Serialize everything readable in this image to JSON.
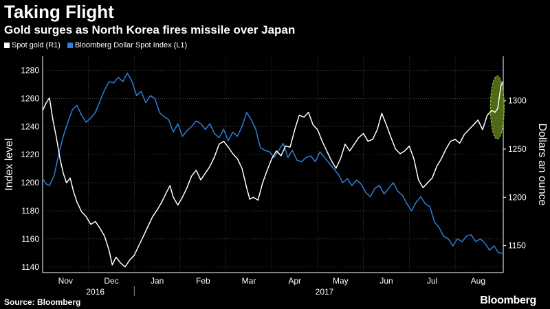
{
  "header": {
    "title": "Taking Flight",
    "subtitle": "Gold surges as North Korea fires missile over Japan"
  },
  "footer": {
    "source": "Source: Bloomberg",
    "brand": "Bloomberg"
  },
  "colors": {
    "gold": "#ffffff",
    "dollar": "#2e7fdc",
    "highlight": "#5a7a1a",
    "highlight_stroke": "#a4c832",
    "grid": "#555555"
  },
  "chart_data": {
    "type": "line",
    "title": "Taking Flight",
    "subtitle": "Gold surges as North Korea fires missile over Japan",
    "ylabel_left": "Index level",
    "ylabel_right": "Dollars an ounce",
    "ylim_left": [
      1136,
      1290
    ],
    "ylim_right": [
      1122,
      1346
    ],
    "yticks_left": [
      1140,
      1160,
      1180,
      1200,
      1220,
      1240,
      1260,
      1280
    ],
    "yticks_right": [
      1150,
      1200,
      1250,
      1300
    ],
    "xlim": [
      0,
      10.05
    ],
    "month_ticks": [
      {
        "label": "Nov",
        "x": 0.5
      },
      {
        "label": "Dec",
        "x": 1.5
      },
      {
        "label": "Jan",
        "x": 2.5
      },
      {
        "label": "Feb",
        "x": 3.5
      },
      {
        "label": "Mar",
        "x": 4.5
      },
      {
        "label": "Apr",
        "x": 5.5
      },
      {
        "label": "May",
        "x": 6.5
      },
      {
        "label": "Jun",
        "x": 7.5
      },
      {
        "label": "Jul",
        "x": 8.5
      },
      {
        "label": "Aug",
        "x": 9.5
      }
    ],
    "year_labels": [
      {
        "label": "2016",
        "x": 1.0
      },
      {
        "label": "2017",
        "x": 6.0
      }
    ],
    "grid": true,
    "legend_position": "top-left",
    "series": [
      {
        "name": "Spot gold (R1)",
        "axis": "right",
        "points": [
          [
            0.0,
            1290
          ],
          [
            0.08,
            1298
          ],
          [
            0.15,
            1303
          ],
          [
            0.22,
            1281
          ],
          [
            0.3,
            1262
          ],
          [
            0.38,
            1240
          ],
          [
            0.45,
            1225
          ],
          [
            0.52,
            1215
          ],
          [
            0.6,
            1220
          ],
          [
            0.68,
            1205
          ],
          [
            0.75,
            1195
          ],
          [
            0.85,
            1185
          ],
          [
            0.95,
            1180
          ],
          [
            1.05,
            1172
          ],
          [
            1.15,
            1175
          ],
          [
            1.25,
            1168
          ],
          [
            1.35,
            1160
          ],
          [
            1.45,
            1145
          ],
          [
            1.52,
            1130
          ],
          [
            1.6,
            1138
          ],
          [
            1.7,
            1132
          ],
          [
            1.8,
            1128
          ],
          [
            1.9,
            1135
          ],
          [
            2.0,
            1140
          ],
          [
            2.1,
            1150
          ],
          [
            2.2,
            1160
          ],
          [
            2.3,
            1170
          ],
          [
            2.4,
            1180
          ],
          [
            2.5,
            1187
          ],
          [
            2.6,
            1195
          ],
          [
            2.7,
            1205
          ],
          [
            2.78,
            1212
          ],
          [
            2.85,
            1200
          ],
          [
            2.95,
            1192
          ],
          [
            3.05,
            1200
          ],
          [
            3.15,
            1210
          ],
          [
            3.25,
            1222
          ],
          [
            3.35,
            1228
          ],
          [
            3.45,
            1218
          ],
          [
            3.55,
            1225
          ],
          [
            3.65,
            1232
          ],
          [
            3.75,
            1242
          ],
          [
            3.85,
            1255
          ],
          [
            3.95,
            1258
          ],
          [
            4.05,
            1252
          ],
          [
            4.15,
            1245
          ],
          [
            4.25,
            1240
          ],
          [
            4.35,
            1230
          ],
          [
            4.45,
            1210
          ],
          [
            4.52,
            1198
          ],
          [
            4.6,
            1200
          ],
          [
            4.7,
            1197
          ],
          [
            4.8,
            1215
          ],
          [
            4.9,
            1228
          ],
          [
            5.0,
            1240
          ],
          [
            5.1,
            1248
          ],
          [
            5.2,
            1243
          ],
          [
            5.3,
            1253
          ],
          [
            5.4,
            1252
          ],
          [
            5.5,
            1270
          ],
          [
            5.6,
            1285
          ],
          [
            5.7,
            1283
          ],
          [
            5.8,
            1288
          ],
          [
            5.9,
            1275
          ],
          [
            6.0,
            1270
          ],
          [
            6.1,
            1258
          ],
          [
            6.2,
            1248
          ],
          [
            6.3,
            1238
          ],
          [
            6.4,
            1230
          ],
          [
            6.5,
            1240
          ],
          [
            6.6,
            1255
          ],
          [
            6.7,
            1248
          ],
          [
            6.8,
            1255
          ],
          [
            6.9,
            1262
          ],
          [
            7.0,
            1266
          ],
          [
            7.1,
            1258
          ],
          [
            7.2,
            1260
          ],
          [
            7.3,
            1270
          ],
          [
            7.4,
            1287
          ],
          [
            7.5,
            1275
          ],
          [
            7.6,
            1262
          ],
          [
            7.7,
            1250
          ],
          [
            7.8,
            1245
          ],
          [
            7.9,
            1248
          ],
          [
            8.0,
            1253
          ],
          [
            8.1,
            1240
          ],
          [
            8.2,
            1218
          ],
          [
            8.3,
            1210
          ],
          [
            8.4,
            1215
          ],
          [
            8.5,
            1220
          ],
          [
            8.6,
            1232
          ],
          [
            8.7,
            1240
          ],
          [
            8.8,
            1250
          ],
          [
            8.9,
            1258
          ],
          [
            9.0,
            1260
          ],
          [
            9.1,
            1256
          ],
          [
            9.2,
            1265
          ],
          [
            9.3,
            1270
          ],
          [
            9.4,
            1275
          ],
          [
            9.5,
            1280
          ],
          [
            9.6,
            1270
          ],
          [
            9.7,
            1285
          ],
          [
            9.8,
            1290
          ],
          [
            9.87,
            1288
          ],
          [
            9.93,
            1292
          ],
          [
            10.0,
            1316
          ],
          [
            10.05,
            1320
          ]
        ]
      },
      {
        "name": "Bloomberg Dollar Spot Index (L1)",
        "axis": "left",
        "points": [
          [
            0.0,
            1203
          ],
          [
            0.08,
            1199
          ],
          [
            0.15,
            1198
          ],
          [
            0.25,
            1205
          ],
          [
            0.35,
            1220
          ],
          [
            0.45,
            1233
          ],
          [
            0.55,
            1243
          ],
          [
            0.65,
            1252
          ],
          [
            0.75,
            1255
          ],
          [
            0.85,
            1248
          ],
          [
            0.95,
            1243
          ],
          [
            1.05,
            1246
          ],
          [
            1.15,
            1250
          ],
          [
            1.25,
            1258
          ],
          [
            1.35,
            1266
          ],
          [
            1.45,
            1272
          ],
          [
            1.55,
            1271
          ],
          [
            1.65,
            1275
          ],
          [
            1.75,
            1272
          ],
          [
            1.85,
            1278
          ],
          [
            1.95,
            1272
          ],
          [
            2.05,
            1262
          ],
          [
            2.15,
            1265
          ],
          [
            2.25,
            1257
          ],
          [
            2.35,
            1262
          ],
          [
            2.45,
            1260
          ],
          [
            2.55,
            1250
          ],
          [
            2.65,
            1247
          ],
          [
            2.75,
            1245
          ],
          [
            2.85,
            1236
          ],
          [
            2.95,
            1242
          ],
          [
            3.05,
            1233
          ],
          [
            3.15,
            1237
          ],
          [
            3.25,
            1240
          ],
          [
            3.35,
            1244
          ],
          [
            3.45,
            1242
          ],
          [
            3.55,
            1238
          ],
          [
            3.65,
            1242
          ],
          [
            3.75,
            1235
          ],
          [
            3.85,
            1232
          ],
          [
            3.95,
            1238
          ],
          [
            4.05,
            1230
          ],
          [
            4.15,
            1236
          ],
          [
            4.25,
            1233
          ],
          [
            4.35,
            1240
          ],
          [
            4.45,
            1250
          ],
          [
            4.55,
            1245
          ],
          [
            4.65,
            1238
          ],
          [
            4.75,
            1225
          ],
          [
            4.85,
            1223
          ],
          [
            4.95,
            1222
          ],
          [
            5.05,
            1218
          ],
          [
            5.15,
            1223
          ],
          [
            5.25,
            1228
          ],
          [
            5.35,
            1218
          ],
          [
            5.45,
            1223
          ],
          [
            5.55,
            1216
          ],
          [
            5.65,
            1215
          ],
          [
            5.75,
            1218
          ],
          [
            5.85,
            1219
          ],
          [
            5.95,
            1215
          ],
          [
            6.05,
            1222
          ],
          [
            6.15,
            1218
          ],
          [
            6.25,
            1214
          ],
          [
            6.35,
            1210
          ],
          [
            6.45,
            1206
          ],
          [
            6.55,
            1200
          ],
          [
            6.65,
            1203
          ],
          [
            6.75,
            1198
          ],
          [
            6.85,
            1202
          ],
          [
            6.95,
            1199
          ],
          [
            7.05,
            1193
          ],
          [
            7.15,
            1190
          ],
          [
            7.25,
            1196
          ],
          [
            7.35,
            1198
          ],
          [
            7.45,
            1192
          ],
          [
            7.55,
            1196
          ],
          [
            7.65,
            1200
          ],
          [
            7.75,
            1194
          ],
          [
            7.85,
            1191
          ],
          [
            7.95,
            1185
          ],
          [
            8.05,
            1180
          ],
          [
            8.15,
            1186
          ],
          [
            8.25,
            1190
          ],
          [
            8.35,
            1185
          ],
          [
            8.45,
            1183
          ],
          [
            8.55,
            1172
          ],
          [
            8.65,
            1168
          ],
          [
            8.75,
            1162
          ],
          [
            8.85,
            1160
          ],
          [
            8.95,
            1155
          ],
          [
            9.05,
            1160
          ],
          [
            9.15,
            1158
          ],
          [
            9.25,
            1162
          ],
          [
            9.35,
            1163
          ],
          [
            9.45,
            1158
          ],
          [
            9.55,
            1160
          ],
          [
            9.65,
            1157
          ],
          [
            9.75,
            1152
          ],
          [
            9.85,
            1155
          ],
          [
            9.95,
            1150
          ],
          [
            10.05,
            1150
          ]
        ]
      }
    ],
    "annotations": [
      {
        "type": "ellipse-highlight",
        "x": 9.92,
        "y_right": 1293
      }
    ]
  }
}
